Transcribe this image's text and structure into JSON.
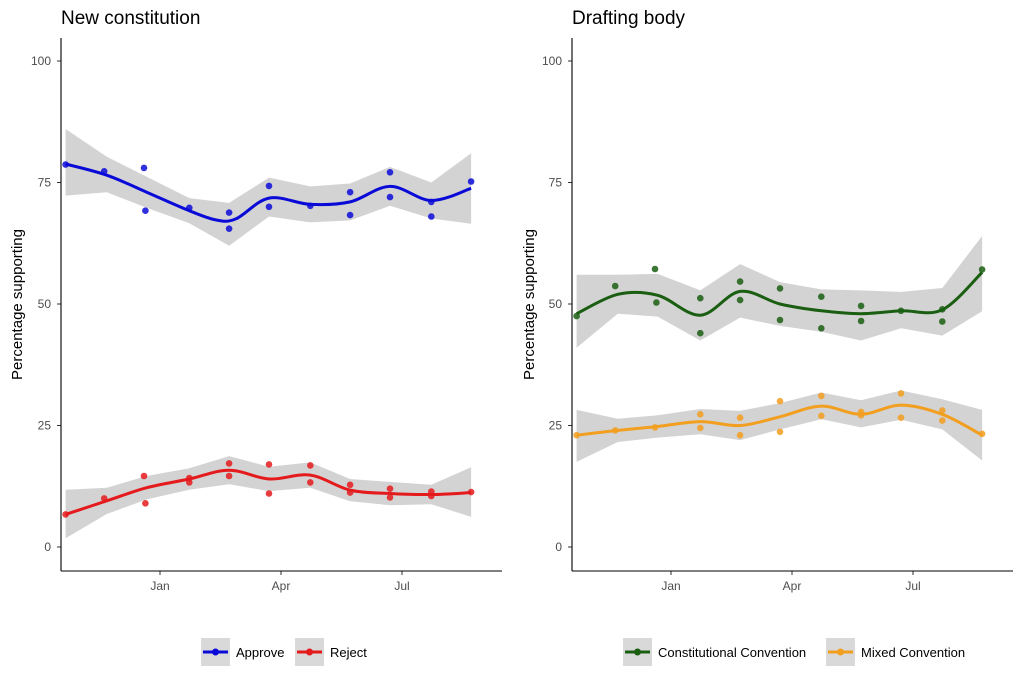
{
  "chart_data": [
    {
      "type": "scatter",
      "title": "New constitution",
      "xlabel": "",
      "ylabel": "Percentage supporting",
      "x_tick_labels": [
        "Jan",
        "Apr",
        "Jul"
      ],
      "y_tick_labels": [
        "0",
        "25",
        "50",
        "75",
        "100"
      ],
      "ylim": [
        -5,
        105
      ],
      "grid": false,
      "legend_position": "bottom",
      "series": [
        {
          "name": "Approve",
          "color": "#0a0ad8",
          "points": [
            {
              "x": "2019-10-22",
              "y": 78.7
            },
            {
              "x": "2019-11-20",
              "y": 77.3
            },
            {
              "x": "2019-12-20",
              "y": 78.0
            },
            {
              "x": "2019-12-21",
              "y": 69.2
            },
            {
              "x": "2020-01-23",
              "y": 69.8
            },
            {
              "x": "2020-02-22",
              "y": 65.5
            },
            {
              "x": "2020-02-22",
              "y": 68.8
            },
            {
              "x": "2020-03-23",
              "y": 70.0
            },
            {
              "x": "2020-03-23",
              "y": 74.3
            },
            {
              "x": "2020-04-23",
              "y": 70.2
            },
            {
              "x": "2020-05-23",
              "y": 68.3
            },
            {
              "x": "2020-05-23",
              "y": 73.0
            },
            {
              "x": "2020-06-22",
              "y": 72.0
            },
            {
              "x": "2020-06-22",
              "y": 77.1
            },
            {
              "x": "2020-07-23",
              "y": 68.0
            },
            {
              "x": "2020-07-23",
              "y": 71.0
            },
            {
              "x": "2020-08-22",
              "y": 75.2
            }
          ],
          "trend": [
            {
              "x": "2019-10-22",
              "y": 78.8
            },
            {
              "x": "2019-11-22",
              "y": 76.5
            },
            {
              "x": "2019-12-22",
              "y": 73.0
            },
            {
              "x": "2020-01-23",
              "y": 69.2
            },
            {
              "x": "2020-02-12",
              "y": 67.3
            },
            {
              "x": "2020-02-27",
              "y": 67.5
            },
            {
              "x": "2020-03-23",
              "y": 71.8
            },
            {
              "x": "2020-04-23",
              "y": 70.5
            },
            {
              "x": "2020-05-23",
              "y": 71.0
            },
            {
              "x": "2020-06-22",
              "y": 74.2
            },
            {
              "x": "2020-07-23",
              "y": 71.3
            },
            {
              "x": "2020-08-22",
              "y": 73.8
            }
          ],
          "band": [
            {
              "x": "2019-10-22",
              "lo": 72.3,
              "hi": 86.0
            },
            {
              "x": "2019-11-22",
              "lo": 73.0,
              "hi": 80.3
            },
            {
              "x": "2019-12-22",
              "lo": 69.8,
              "hi": 76.2
            },
            {
              "x": "2020-01-23",
              "lo": 66.6,
              "hi": 71.8
            },
            {
              "x": "2020-02-22",
              "lo": 62.0,
              "hi": 70.8
            },
            {
              "x": "2020-03-23",
              "lo": 68.0,
              "hi": 76.0
            },
            {
              "x": "2020-04-23",
              "lo": 66.8,
              "hi": 74.2
            },
            {
              "x": "2020-05-23",
              "lo": 67.2,
              "hi": 74.8
            },
            {
              "x": "2020-06-22",
              "lo": 70.2,
              "hi": 78.2
            },
            {
              "x": "2020-07-23",
              "lo": 67.6,
              "hi": 75.0
            },
            {
              "x": "2020-08-22",
              "lo": 66.5,
              "hi": 81.0
            }
          ]
        },
        {
          "name": "Reject",
          "color": "#e41a1c",
          "points": [
            {
              "x": "2019-10-22",
              "y": 6.7
            },
            {
              "x": "2019-11-20",
              "y": 10.0
            },
            {
              "x": "2019-12-20",
              "y": 14.6
            },
            {
              "x": "2019-12-21",
              "y": 9.0
            },
            {
              "x": "2020-01-23",
              "y": 14.2
            },
            {
              "x": "2020-01-23",
              "y": 13.3
            },
            {
              "x": "2020-02-22",
              "y": 17.2
            },
            {
              "x": "2020-02-22",
              "y": 14.6
            },
            {
              "x": "2020-03-23",
              "y": 17.0
            },
            {
              "x": "2020-03-23",
              "y": 11.0
            },
            {
              "x": "2020-04-23",
              "y": 16.8
            },
            {
              "x": "2020-04-23",
              "y": 13.3
            },
            {
              "x": "2020-05-23",
              "y": 12.8
            },
            {
              "x": "2020-05-23",
              "y": 11.2
            },
            {
              "x": "2020-06-22",
              "y": 12.0
            },
            {
              "x": "2020-06-22",
              "y": 10.2
            },
            {
              "x": "2020-07-23",
              "y": 11.4
            },
            {
              "x": "2020-07-23",
              "y": 10.5
            },
            {
              "x": "2020-08-22",
              "y": 11.3
            }
          ],
          "trend": [
            {
              "x": "2019-10-22",
              "y": 6.7
            },
            {
              "x": "2019-11-22",
              "y": 9.5
            },
            {
              "x": "2019-12-22",
              "y": 12.2
            },
            {
              "x": "2020-01-23",
              "y": 14.0
            },
            {
              "x": "2020-02-22",
              "y": 15.8
            },
            {
              "x": "2020-03-23",
              "y": 14.0
            },
            {
              "x": "2020-04-23",
              "y": 14.8
            },
            {
              "x": "2020-05-23",
              "y": 11.7
            },
            {
              "x": "2020-06-22",
              "y": 11.0
            },
            {
              "x": "2020-07-23",
              "y": 10.8
            },
            {
              "x": "2020-08-22",
              "y": 11.2
            }
          ],
          "band": [
            {
              "x": "2019-10-22",
              "lo": 1.8,
              "hi": 11.8
            },
            {
              "x": "2019-11-22",
              "lo": 6.8,
              "hi": 12.2
            },
            {
              "x": "2019-12-22",
              "lo": 9.8,
              "hi": 14.6
            },
            {
              "x": "2020-01-23",
              "lo": 11.8,
              "hi": 16.2
            },
            {
              "x": "2020-02-22",
              "lo": 12.9,
              "hi": 18.7
            },
            {
              "x": "2020-03-23",
              "lo": 11.5,
              "hi": 16.5
            },
            {
              "x": "2020-04-23",
              "lo": 12.2,
              "hi": 17.4
            },
            {
              "x": "2020-05-23",
              "lo": 9.4,
              "hi": 14.0
            },
            {
              "x": "2020-06-22",
              "lo": 8.6,
              "hi": 13.4
            },
            {
              "x": "2020-07-23",
              "lo": 8.8,
              "hi": 12.8
            },
            {
              "x": "2020-08-22",
              "lo": 6.2,
              "hi": 16.4
            }
          ]
        }
      ]
    },
    {
      "type": "scatter",
      "title": "Drafting body",
      "xlabel": "",
      "ylabel": "Percentage supporting",
      "x_tick_labels": [
        "Jan",
        "Apr",
        "Jul"
      ],
      "y_tick_labels": [
        "0",
        "25",
        "50",
        "75",
        "100"
      ],
      "ylim": [
        -5,
        105
      ],
      "grid": false,
      "legend_position": "bottom",
      "series": [
        {
          "name": "Constitutional Convention",
          "color": "#1a5e12",
          "points": [
            {
              "x": "2019-10-22",
              "y": 47.5
            },
            {
              "x": "2019-11-20",
              "y": 53.7
            },
            {
              "x": "2019-12-20",
              "y": 57.2
            },
            {
              "x": "2019-12-21",
              "y": 50.3
            },
            {
              "x": "2020-01-23",
              "y": 51.2
            },
            {
              "x": "2020-01-23",
              "y": 44.0
            },
            {
              "x": "2020-02-22",
              "y": 54.6
            },
            {
              "x": "2020-02-22",
              "y": 50.8
            },
            {
              "x": "2020-03-23",
              "y": 53.2
            },
            {
              "x": "2020-03-23",
              "y": 46.7
            },
            {
              "x": "2020-04-23",
              "y": 51.5
            },
            {
              "x": "2020-04-23",
              "y": 45.0
            },
            {
              "x": "2020-05-23",
              "y": 49.6
            },
            {
              "x": "2020-05-23",
              "y": 46.5
            },
            {
              "x": "2020-06-22",
              "y": 48.6
            },
            {
              "x": "2020-07-23",
              "y": 48.9
            },
            {
              "x": "2020-07-23",
              "y": 46.4
            },
            {
              "x": "2020-08-22",
              "y": 57.1
            }
          ],
          "trend": [
            {
              "x": "2019-10-22",
              "y": 48.0
            },
            {
              "x": "2019-11-22",
              "y": 52.0
            },
            {
              "x": "2019-12-22",
              "y": 51.8
            },
            {
              "x": "2020-01-23",
              "y": 47.7
            },
            {
              "x": "2020-02-22",
              "y": 52.6
            },
            {
              "x": "2020-03-23",
              "y": 50.0
            },
            {
              "x": "2020-04-23",
              "y": 48.6
            },
            {
              "x": "2020-05-23",
              "y": 48.0
            },
            {
              "x": "2020-06-22",
              "y": 48.6
            },
            {
              "x": "2020-07-23",
              "y": 48.8
            },
            {
              "x": "2020-08-22",
              "y": 56.5
            }
          ],
          "band": [
            {
              "x": "2019-10-22",
              "lo": 41.0,
              "hi": 56.0
            },
            {
              "x": "2019-11-22",
              "lo": 48.0,
              "hi": 56.0
            },
            {
              "x": "2019-12-22",
              "lo": 47.4,
              "hi": 56.2
            },
            {
              "x": "2020-01-23",
              "lo": 42.5,
              "hi": 52.8
            },
            {
              "x": "2020-02-22",
              "lo": 47.2,
              "hi": 58.2
            },
            {
              "x": "2020-03-23",
              "lo": 45.5,
              "hi": 54.5
            },
            {
              "x": "2020-04-23",
              "lo": 44.3,
              "hi": 53.0
            },
            {
              "x": "2020-05-23",
              "lo": 42.5,
              "hi": 52.8
            },
            {
              "x": "2020-06-22",
              "lo": 45.0,
              "hi": 52.5
            },
            {
              "x": "2020-07-23",
              "lo": 43.5,
              "hi": 53.3
            },
            {
              "x": "2020-08-22",
              "lo": 48.5,
              "hi": 64.0
            }
          ]
        },
        {
          "name": "Mixed Convention",
          "color": "#f29e1f",
          "points": [
            {
              "x": "2019-10-22",
              "y": 23.0
            },
            {
              "x": "2019-11-20",
              "y": 24.0
            },
            {
              "x": "2019-12-20",
              "y": 24.6
            },
            {
              "x": "2020-01-23",
              "y": 27.3
            },
            {
              "x": "2020-01-23",
              "y": 24.5
            },
            {
              "x": "2020-02-22",
              "y": 26.6
            },
            {
              "x": "2020-02-22",
              "y": 23.0
            },
            {
              "x": "2020-03-23",
              "y": 30.0
            },
            {
              "x": "2020-03-23",
              "y": 23.7
            },
            {
              "x": "2020-04-23",
              "y": 31.1
            },
            {
              "x": "2020-04-23",
              "y": 27.0
            },
            {
              "x": "2020-05-23",
              "y": 27.8
            },
            {
              "x": "2020-05-23",
              "y": 27.1
            },
            {
              "x": "2020-06-22",
              "y": 31.6
            },
            {
              "x": "2020-06-22",
              "y": 26.6
            },
            {
              "x": "2020-07-23",
              "y": 28.1
            },
            {
              "x": "2020-07-23",
              "y": 26.0
            },
            {
              "x": "2020-08-22",
              "y": 23.3
            }
          ],
          "trend": [
            {
              "x": "2019-10-22",
              "y": 23.0
            },
            {
              "x": "2019-11-22",
              "y": 24.0
            },
            {
              "x": "2019-12-22",
              "y": 24.8
            },
            {
              "x": "2020-01-23",
              "y": 25.8
            },
            {
              "x": "2020-02-22",
              "y": 25.0
            },
            {
              "x": "2020-03-23",
              "y": 26.8
            },
            {
              "x": "2020-04-23",
              "y": 29.0
            },
            {
              "x": "2020-05-23",
              "y": 27.3
            },
            {
              "x": "2020-06-22",
              "y": 29.2
            },
            {
              "x": "2020-07-23",
              "y": 27.3
            },
            {
              "x": "2020-08-22",
              "y": 23.0
            }
          ],
          "band": [
            {
              "x": "2019-10-22",
              "lo": 17.5,
              "hi": 28.2
            },
            {
              "x": "2019-11-22",
              "lo": 21.6,
              "hi": 26.4
            },
            {
              "x": "2019-12-22",
              "lo": 22.5,
              "hi": 27.1
            },
            {
              "x": "2020-01-23",
              "lo": 23.2,
              "hi": 28.4
            },
            {
              "x": "2020-02-22",
              "lo": 22.0,
              "hi": 28.0
            },
            {
              "x": "2020-03-23",
              "lo": 24.2,
              "hi": 29.6
            },
            {
              "x": "2020-04-23",
              "lo": 26.3,
              "hi": 31.8
            },
            {
              "x": "2020-05-23",
              "lo": 24.6,
              "hi": 30.2
            },
            {
              "x": "2020-06-22",
              "lo": 26.2,
              "hi": 32.2
            },
            {
              "x": "2020-07-23",
              "lo": 24.2,
              "hi": 30.4
            },
            {
              "x": "2020-08-22",
              "lo": 17.8,
              "hi": 28.2
            }
          ]
        }
      ]
    }
  ],
  "style": {
    "band_color": "#d3d3d3",
    "axis_color": "#000000",
    "tick_label_color": "#4d4d4d",
    "legend_key_background": "#d9d9d9"
  }
}
